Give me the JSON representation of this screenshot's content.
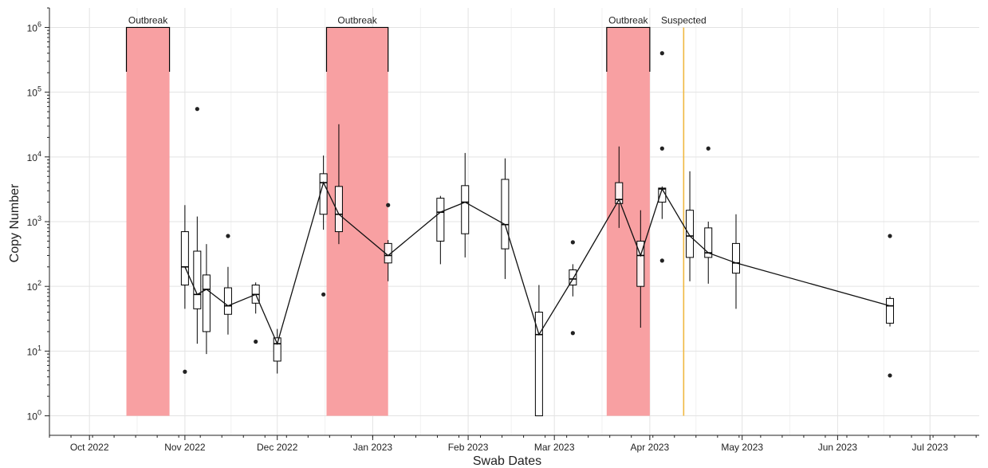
{
  "chart_data": {
    "type": "box",
    "xlabel": "Swab Dates",
    "ylabel": "Copy Number",
    "x_ticks": [
      "Oct 2022",
      "Nov 2022",
      "Dec 2022",
      "Jan 2023",
      "Feb 2023",
      "Mar 2023",
      "Apr 2023",
      "May 2023",
      "Jun 2023",
      "Jul 2023"
    ],
    "x_tick_dates": [
      "2022-10-01",
      "2022-11-01",
      "2022-12-01",
      "2023-01-01",
      "2023-02-01",
      "2023-03-01",
      "2023-04-01",
      "2023-05-01",
      "2023-06-01",
      "2023-07-01"
    ],
    "xlim": [
      "2022-09-18",
      "2023-07-17"
    ],
    "y_scale": "log10",
    "ylim": [
      0.5,
      2000000
    ],
    "y_ticks": [
      1,
      10,
      100,
      1000,
      10000,
      100000,
      1000000
    ],
    "y_tick_labels": [
      {
        "base": "10",
        "exp": "0"
      },
      {
        "base": "10",
        "exp": "1"
      },
      {
        "base": "10",
        "exp": "2"
      },
      {
        "base": "10",
        "exp": "3"
      },
      {
        "base": "10",
        "exp": "4"
      },
      {
        "base": "10",
        "exp": "5"
      },
      {
        "base": "10",
        "exp": "6"
      }
    ],
    "grid": true,
    "periods": [
      {
        "label": "Outbreak",
        "start": "2022-10-13",
        "end": "2022-10-27",
        "color": "#f8a0a2"
      },
      {
        "label": "Outbreak",
        "start": "2022-12-17",
        "end": "2023-01-06",
        "color": "#f8a0a2"
      },
      {
        "label": "Outbreak",
        "start": "2023-03-18",
        "end": "2023-04-01",
        "color": "#f8a0a2"
      }
    ],
    "vlines": [
      {
        "label": "Suspected",
        "date": "2023-04-12",
        "color": "#f0b840"
      }
    ],
    "boxes": [
      {
        "date": "2022-11-01",
        "whisker_low": 45,
        "q1": 105,
        "median": 200,
        "q3": 700,
        "whisker_high": 1800,
        "outliers": [
          4.8
        ]
      },
      {
        "date": "2022-11-05",
        "whisker_low": 13,
        "q1": 45,
        "median": 75,
        "q3": 350,
        "whisker_high": 1200,
        "outliers": [
          55000
        ]
      },
      {
        "date": "2022-11-08",
        "whisker_low": 9,
        "q1": 20,
        "median": 90,
        "q3": 150,
        "whisker_high": 450,
        "outliers": []
      },
      {
        "date": "2022-11-15",
        "whisker_low": 18,
        "q1": 37,
        "median": 50,
        "q3": 95,
        "whisker_high": 200,
        "outliers": [
          600
        ]
      },
      {
        "date": "2022-11-24",
        "whisker_low": 38,
        "q1": 55,
        "median": 75,
        "q3": 105,
        "whisker_high": 115,
        "outliers": [
          14
        ]
      },
      {
        "date": "2022-12-01",
        "whisker_low": 4.5,
        "q1": 7,
        "median": 13,
        "q3": 16,
        "whisker_high": 22,
        "outliers": []
      },
      {
        "date": "2022-12-16",
        "whisker_low": 750,
        "q1": 1300,
        "median": 4000,
        "q3": 5500,
        "whisker_high": 10500,
        "outliers": [
          75
        ]
      },
      {
        "date": "2022-12-21",
        "whisker_low": 450,
        "q1": 700,
        "median": 1300,
        "q3": 3500,
        "whisker_high": 32000,
        "outliers": []
      },
      {
        "date": "2023-01-06",
        "whisker_low": 120,
        "q1": 230,
        "median": 300,
        "q3": 460,
        "whisker_high": 520,
        "outliers": [
          1800
        ]
      },
      {
        "date": "2023-01-23",
        "whisker_low": 220,
        "q1": 500,
        "median": 1400,
        "q3": 2300,
        "whisker_high": 2500,
        "outliers": []
      },
      {
        "date": "2023-01-31",
        "whisker_low": 280,
        "q1": 650,
        "median": 2000,
        "q3": 3600,
        "whisker_high": 11500,
        "outliers": []
      },
      {
        "date": "2023-02-13",
        "whisker_low": 130,
        "q1": 380,
        "median": 900,
        "q3": 4500,
        "whisker_high": 9500,
        "outliers": []
      },
      {
        "date": "2023-02-24",
        "whisker_low": 1,
        "q1": 1,
        "median": 18,
        "q3": 40,
        "whisker_high": 105,
        "outliers": []
      },
      {
        "date": "2023-03-07",
        "whisker_low": 70,
        "q1": 105,
        "median": 130,
        "q3": 180,
        "whisker_high": 220,
        "outliers": [
          480,
          19
        ]
      },
      {
        "date": "2023-03-22",
        "whisker_low": 800,
        "q1": 1900,
        "median": 2200,
        "q3": 4000,
        "whisker_high": 14500,
        "outliers": []
      },
      {
        "date": "2023-03-29",
        "whisker_low": 23,
        "q1": 100,
        "median": 300,
        "q3": 500,
        "whisker_high": 1500,
        "outliers": []
      },
      {
        "date": "2023-04-05",
        "whisker_low": 1100,
        "q1": 2000,
        "median": 3200,
        "q3": 3300,
        "whisker_high": 3500,
        "outliers": [
          400000,
          13500,
          250
        ]
      },
      {
        "date": "2023-04-14",
        "whisker_low": 120,
        "q1": 280,
        "median": 600,
        "q3": 1500,
        "whisker_high": 6000,
        "outliers": []
      },
      {
        "date": "2023-04-20",
        "whisker_low": 110,
        "q1": 280,
        "median": 330,
        "q3": 800,
        "whisker_high": 1000,
        "outliers": [
          13500
        ]
      },
      {
        "date": "2023-04-29",
        "whisker_low": 45,
        "q1": 160,
        "median": 230,
        "q3": 460,
        "whisker_high": 1300,
        "outliers": []
      },
      {
        "date": "2023-06-18",
        "whisker_low": 24,
        "q1": 27,
        "median": 50,
        "q3": 65,
        "whisker_high": 70,
        "outliers": [
          600,
          4.2
        ]
      }
    ],
    "median_line": true
  }
}
